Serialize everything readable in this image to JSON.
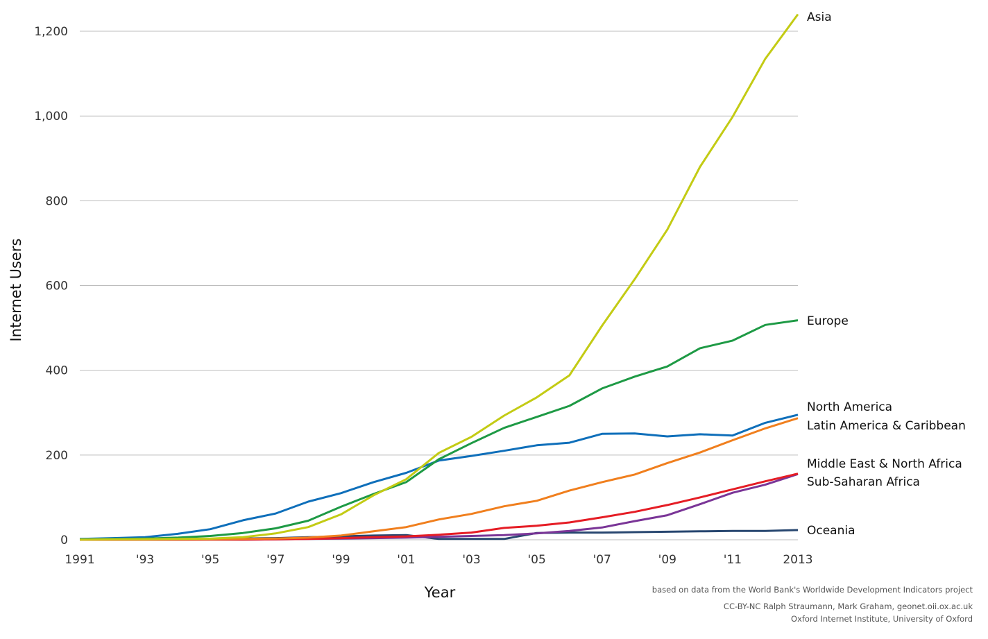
{
  "chart_data": {
    "type": "line",
    "title": "",
    "xlabel": "Year",
    "ylabel": "Internet Users",
    "x": [
      1991,
      1992,
      1993,
      1994,
      1995,
      1996,
      1997,
      1998,
      1999,
      2000,
      2001,
      2002,
      2003,
      2004,
      2005,
      2006,
      2007,
      2008,
      2009,
      2010,
      2011,
      2012,
      2013
    ],
    "x_tick_values": [
      1991,
      1993,
      1995,
      1997,
      1999,
      2001,
      2003,
      2005,
      2007,
      2009,
      2011,
      2013
    ],
    "x_tick_labels": [
      "1991",
      "'93",
      "'95",
      "'97",
      "'99",
      "'01",
      "'03",
      "'05",
      "'07",
      "'09",
      "'11",
      "2013"
    ],
    "y_tick_values": [
      0,
      200,
      400,
      600,
      800,
      1000,
      1200
    ],
    "y_tick_labels": [
      "0",
      "200",
      "400",
      "600",
      "800",
      "1,000",
      "1,200"
    ],
    "xlim": [
      1991,
      2013
    ],
    "ylim": [
      0,
      1250
    ],
    "grid": true,
    "legend": "direct labels at right",
    "series": [
      {
        "name": "Asia",
        "color": "#c3cb14",
        "values": [
          0.5,
          1,
          1.5,
          2,
          3,
          6,
          15,
          30,
          60,
          105,
          143,
          205,
          243,
          293,
          336,
          388,
          505,
          615,
          732,
          880,
          998,
          1135,
          1240
        ]
      },
      {
        "name": "Europe",
        "color": "#1e9a45",
        "values": [
          1,
          2,
          3,
          5,
          9,
          16,
          27,
          45,
          78,
          108,
          136,
          190,
          228,
          264,
          290,
          316,
          357,
          385,
          409,
          452,
          470,
          507,
          518
        ]
      },
      {
        "name": "North America",
        "color": "#0f6fba",
        "values": [
          2,
          4,
          6,
          14,
          25,
          46,
          62,
          90,
          110,
          136,
          158,
          187,
          198,
          210,
          223,
          229,
          250,
          251,
          244,
          249,
          246,
          276,
          295
        ]
      },
      {
        "name": "Latin America & Caribbean",
        "color": "#f07f1e",
        "values": [
          0.2,
          0.3,
          0.5,
          0.8,
          1,
          2,
          3,
          5,
          10,
          20,
          30,
          48,
          61,
          79,
          92,
          116,
          136,
          154,
          181,
          206,
          235,
          263,
          287
        ]
      },
      {
        "name": "Middle East & North Africa",
        "color": "#e51d25",
        "values": [
          0,
          0,
          0.1,
          0.2,
          0.3,
          0.5,
          1,
          2,
          4,
          6,
          8,
          12,
          17,
          28,
          33,
          41,
          53,
          66,
          82,
          100,
          119,
          138,
          156
        ]
      },
      {
        "name": "Sub-Saharan Africa",
        "color": "#7a3597",
        "values": [
          0,
          0,
          0.1,
          0.2,
          0.3,
          0.5,
          1,
          2,
          3,
          4,
          5,
          7,
          9,
          11,
          15,
          21,
          29,
          44,
          58,
          84,
          111,
          130,
          155
        ]
      },
      {
        "name": "Oceania",
        "color": "#27466f",
        "values": [
          0.5,
          0.7,
          1,
          1.5,
          2,
          3,
          4,
          6,
          8,
          10,
          11,
          2,
          2,
          2,
          16,
          17,
          17,
          18,
          19,
          20,
          21,
          21,
          23
        ]
      }
    ]
  },
  "credits": {
    "source": "based on data from the World Bank's Worldwide Development Indicators project",
    "license": "CC-BY-NC Ralph Straumann, Mark Graham, geonet.oii.ox.ac.uk",
    "institution": "Oxford Internet Institute, University of Oxford"
  }
}
